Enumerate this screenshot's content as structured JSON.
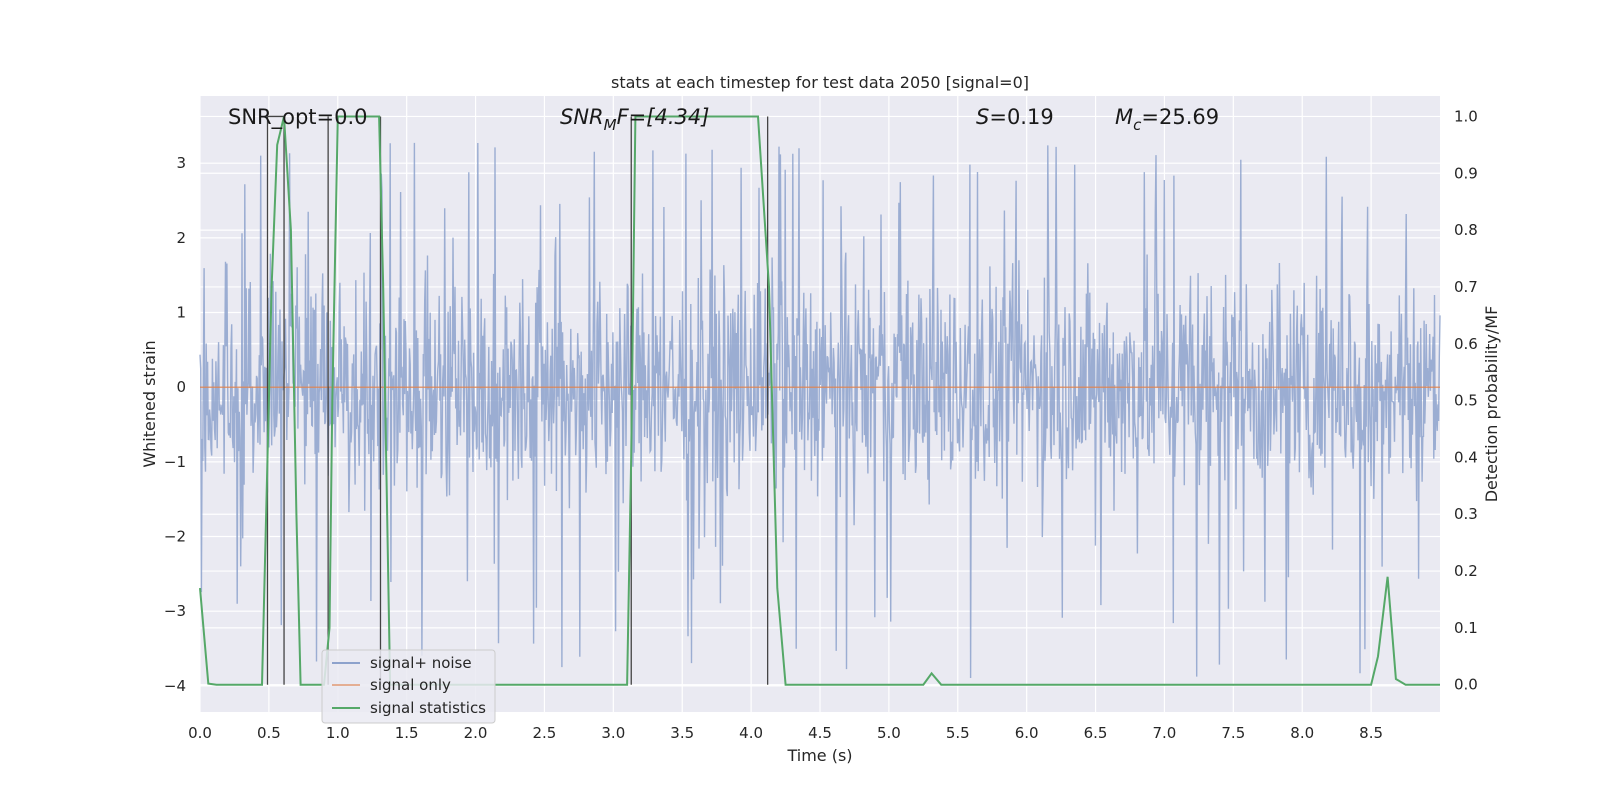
{
  "chart_data": {
    "type": "line",
    "title": "stats at each timestep for test data 2050 [signal=0]",
    "xlabel": "Time (s)",
    "ylabel_left": "Whitened strain",
    "ylabel_right": "Detection probability/MF",
    "xlim": [
      0.0,
      9.0
    ],
    "ylim_left": [
      -4.35,
      3.9
    ],
    "ylim_right": [
      -0.048,
      1.036
    ],
    "x_ticks": [
      "0.0",
      "0.5",
      "1.0",
      "1.5",
      "2.0",
      "2.5",
      "3.0",
      "3.5",
      "4.0",
      "4.5",
      "5.0",
      "5.5",
      "6.0",
      "6.5",
      "7.0",
      "7.5",
      "8.0",
      "8.5"
    ],
    "y_left_ticks": [
      "−4",
      "−3",
      "−2",
      "−1",
      "0",
      "1",
      "2",
      "3"
    ],
    "y_right_ticks": [
      "0.0",
      "0.1",
      "0.2",
      "0.3",
      "0.4",
      "0.5",
      "0.6",
      "0.7",
      "0.8",
      "0.9",
      "1.0"
    ],
    "grid": true,
    "legend_position": "lower-left",
    "colors": {
      "signal_noise": "#8da2cc",
      "signal_only": "#dd8452",
      "signal_statistics": "#55a868",
      "vlines": "#444444",
      "background": "#eaeaf2",
      "grid": "#ffffff"
    },
    "annotations": {
      "snr_opt": "SNR_opt=0.0",
      "snr_mf_base": "SNR",
      "snr_mf_sub": "M",
      "snr_mf_rest": "F=[4.34]",
      "s_sym": "S",
      "s_val": "=0.19",
      "mc_sym": "M",
      "mc_sub": "c",
      "mc_val": "=25.69"
    },
    "series": [
      {
        "name": "signal+ noise",
        "axis": "left",
        "style": "noise band",
        "envelope_typical": [
          -2.0,
          2.3
        ],
        "envelope_extreme": [
          -3.9,
          3.3
        ],
        "samples": 1800
      },
      {
        "name": "signal only",
        "axis": "left",
        "x": [
          0.0,
          9.0
        ],
        "y": [
          0.0,
          0.0
        ]
      },
      {
        "name": "signal statistics",
        "axis": "right",
        "x": [
          0.0,
          0.06,
          0.12,
          0.45,
          0.5,
          0.52,
          0.56,
          0.61,
          0.66,
          0.7,
          0.73,
          0.78,
          0.9,
          0.94,
          0.96,
          1.0,
          1.1,
          1.3,
          1.33,
          1.38,
          3.1,
          3.13,
          3.16,
          3.22,
          4.05,
          4.13,
          4.19,
          4.25,
          5.25,
          5.31,
          5.38,
          8.5,
          8.55,
          8.62,
          8.68,
          8.75,
          9.0
        ],
        "y": [
          0.17,
          0.002,
          0.0,
          0.0,
          0.5,
          0.7,
          0.95,
          1.0,
          0.8,
          0.3,
          0.0,
          0.0,
          0.0,
          0.1,
          0.5,
          1.0,
          1.0,
          1.0,
          0.7,
          0.0,
          0.0,
          0.4,
          1.0,
          1.0,
          1.0,
          0.7,
          0.17,
          0.0,
          0.0,
          0.02,
          0.0,
          0.0,
          0.05,
          0.19,
          0.01,
          0.0,
          0.0
        ]
      }
    ],
    "vlines": [
      0.49,
      0.61,
      0.93,
      1.31,
      3.13,
      4.12
    ]
  },
  "legend": {
    "entries": [
      "signal+ noise",
      "signal only",
      "signal statistics"
    ]
  }
}
